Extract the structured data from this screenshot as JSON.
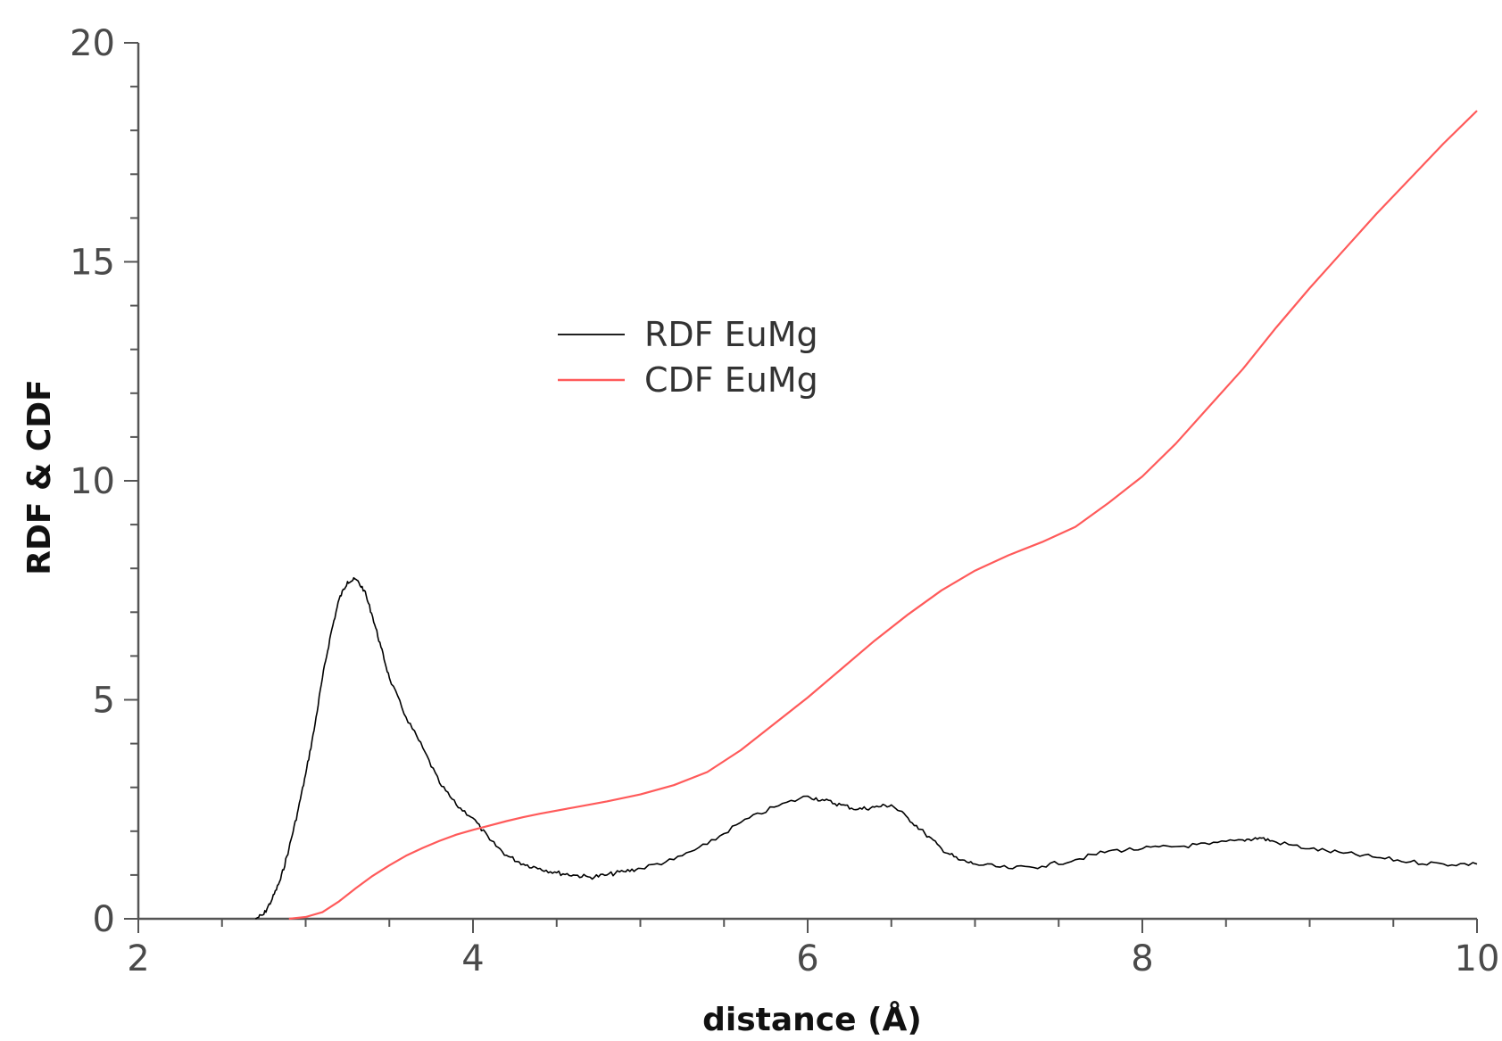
{
  "chart_data": {
    "type": "line",
    "title": "",
    "xlabel": "distance (Å)",
    "ylabel": "RDF & CDF",
    "xlim": [
      2,
      10
    ],
    "ylim": [
      0,
      20
    ],
    "x_ticks": [
      2,
      4,
      6,
      8,
      10
    ],
    "y_ticks": [
      0,
      5,
      10,
      15,
      20
    ],
    "grid": false,
    "legend_position": "upper-center",
    "series": [
      {
        "name": "RDF EuMg",
        "color": "#000000",
        "x": [
          2.7,
          2.75,
          2.8,
          2.85,
          2.9,
          2.95,
          3.0,
          3.05,
          3.1,
          3.15,
          3.2,
          3.25,
          3.3,
          3.35,
          3.4,
          3.45,
          3.5,
          3.6,
          3.7,
          3.8,
          3.9,
          4.0,
          4.1,
          4.2,
          4.3,
          4.4,
          4.5,
          4.6,
          4.7,
          4.8,
          4.9,
          5.0,
          5.2,
          5.4,
          5.6,
          5.8,
          6.0,
          6.1,
          6.2,
          6.3,
          6.4,
          6.5,
          6.6,
          6.7,
          6.8,
          6.9,
          7.0,
          7.2,
          7.4,
          7.6,
          7.8,
          8.0,
          8.2,
          8.4,
          8.6,
          8.7,
          8.8,
          9.0,
          9.2,
          9.4,
          9.6,
          9.8,
          10.0
        ],
        "y": [
          0.0,
          0.1,
          0.45,
          0.9,
          1.6,
          2.4,
          3.3,
          4.3,
          5.5,
          6.5,
          7.3,
          7.7,
          7.75,
          7.5,
          6.9,
          6.2,
          5.5,
          4.6,
          3.9,
          3.1,
          2.6,
          2.3,
          1.8,
          1.45,
          1.25,
          1.15,
          1.05,
          1.0,
          0.95,
          1.0,
          1.08,
          1.15,
          1.35,
          1.7,
          2.2,
          2.55,
          2.8,
          2.7,
          2.6,
          2.5,
          2.55,
          2.6,
          2.3,
          1.95,
          1.6,
          1.35,
          1.25,
          1.15,
          1.2,
          1.35,
          1.55,
          1.6,
          1.65,
          1.7,
          1.8,
          1.85,
          1.75,
          1.6,
          1.5,
          1.4,
          1.3,
          1.25,
          1.25
        ]
      },
      {
        "name": "CDF EuMg",
        "color": "#ff5a5a",
        "x": [
          2.9,
          3.0,
          3.1,
          3.2,
          3.3,
          3.4,
          3.5,
          3.6,
          3.7,
          3.8,
          3.9,
          4.0,
          4.1,
          4.2,
          4.3,
          4.4,
          4.6,
          4.8,
          5.0,
          5.2,
          5.4,
          5.6,
          5.8,
          6.0,
          6.2,
          6.4,
          6.6,
          6.8,
          7.0,
          7.2,
          7.4,
          7.6,
          7.8,
          8.0,
          8.2,
          8.4,
          8.6,
          8.8,
          9.0,
          9.2,
          9.4,
          9.6,
          9.8,
          10.0
        ],
        "y": [
          0.0,
          0.04,
          0.15,
          0.4,
          0.7,
          0.98,
          1.22,
          1.44,
          1.62,
          1.78,
          1.92,
          2.03,
          2.13,
          2.23,
          2.32,
          2.4,
          2.54,
          2.68,
          2.84,
          3.05,
          3.35,
          3.85,
          4.45,
          5.05,
          5.7,
          6.35,
          6.95,
          7.5,
          7.95,
          8.3,
          8.6,
          8.95,
          9.5,
          10.1,
          10.85,
          11.7,
          12.55,
          13.5,
          14.4,
          15.25,
          16.1,
          16.9,
          17.7,
          18.45
        ]
      }
    ]
  }
}
